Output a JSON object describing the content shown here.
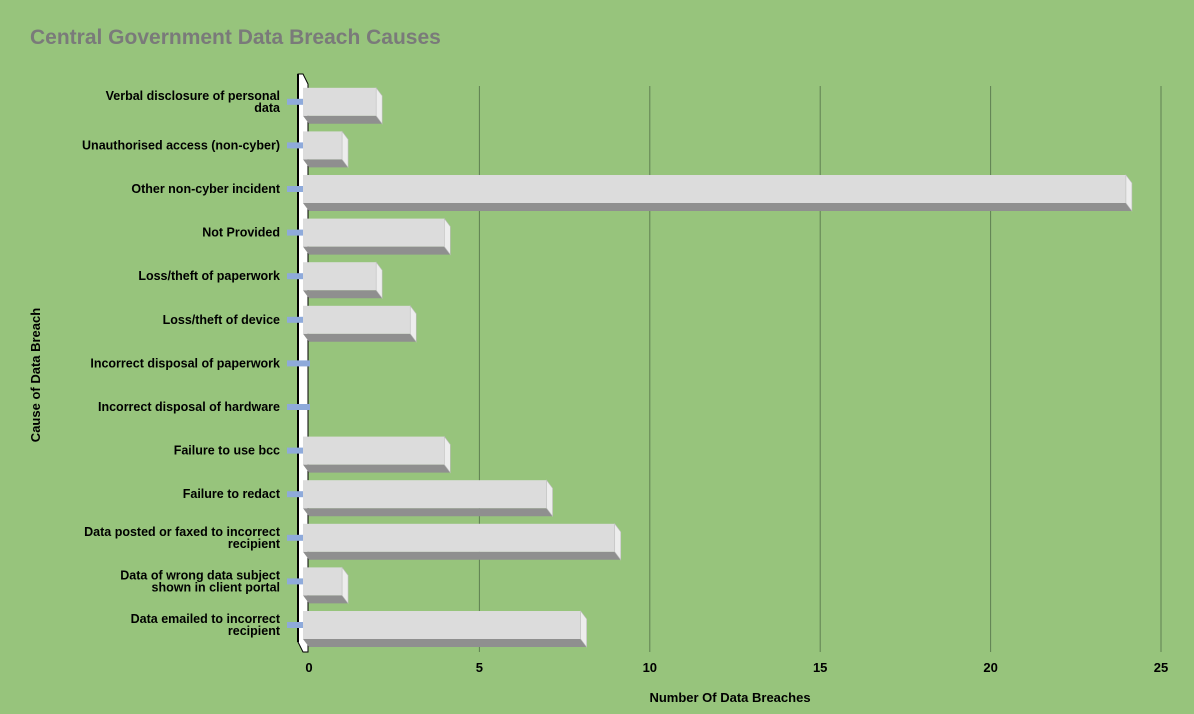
{
  "chart_data": {
    "type": "bar",
    "orientation": "horizontal",
    "title": "Central Government Data Breach Causes",
    "xlabel": "Number Of Data Breaches",
    "ylabel": "Cause of Data Breach",
    "xlim": [
      0,
      25
    ],
    "xticks": [
      0,
      5,
      10,
      15,
      20,
      25
    ],
    "grid": "vertical",
    "categories": [
      [
        "Verbal disclosure of personal",
        "data"
      ],
      [
        "Unauthorised access (non-cyber)"
      ],
      [
        "Other non-cyber incident"
      ],
      [
        "Not Provided"
      ],
      [
        "Loss/theft of paperwork"
      ],
      [
        "Loss/theft of device"
      ],
      [
        "Incorrect disposal of paperwork"
      ],
      [
        "Incorrect disposal of hardware"
      ],
      [
        "Failure to use bcc"
      ],
      [
        "Failure to redact"
      ],
      [
        "Data posted or faxed to incorrect",
        "recipient"
      ],
      [
        "Data of wrong data subject",
        "shown in client portal"
      ],
      [
        "Data emailed to incorrect",
        "recipient"
      ]
    ],
    "values": [
      2,
      1,
      24,
      4,
      2,
      3,
      0,
      0,
      4,
      7,
      9,
      1,
      8
    ],
    "colors": {
      "background": "#97c47c",
      "bar_face": "#dcdcdc",
      "bar_bottom": "#8f8f8f",
      "bar_side": "#ededed",
      "tick_mark": "#8eaadb",
      "grid": "#5f7f52",
      "title": "#7a7a7a",
      "text": "#000000"
    }
  }
}
